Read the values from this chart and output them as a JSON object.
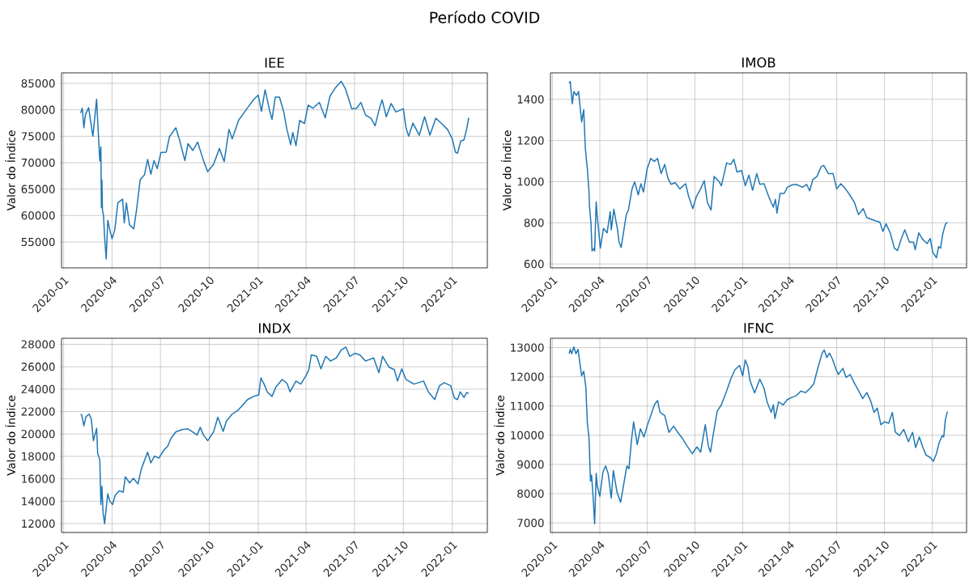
{
  "chart_data": [
    {
      "type": "other",
      "title": "Período COVID"
    },
    {
      "type": "line",
      "title": "IEE",
      "ylabel": "Valor do Índice",
      "grid": true,
      "xlim": [
        "2019-12-28",
        "2022-03-08"
      ],
      "xticks": [
        "2020-01",
        "2020-04",
        "2020-07",
        "2020-10",
        "2021-01",
        "2021-04",
        "2021-07",
        "2021-10",
        "2022-01"
      ],
      "ylim": [
        50100,
        87000
      ],
      "yticks": [
        55000,
        60000,
        65000,
        70000,
        75000,
        80000,
        85000
      ],
      "x": [
        "2020-02-02",
        "2020-02-05",
        "2020-02-08",
        "2020-02-11",
        "2020-02-17",
        "2020-02-25",
        "2020-03-03",
        "2020-03-05",
        "2020-03-09",
        "2020-03-11",
        "2020-03-12",
        "2020-03-13",
        "2020-03-14",
        "2020-03-16",
        "2020-03-18",
        "2020-03-21",
        "2020-03-24",
        "2020-03-28",
        "2020-04-01",
        "2020-04-06",
        "2020-04-12",
        "2020-04-21",
        "2020-04-24",
        "2020-04-28",
        "2020-05-04",
        "2020-05-12",
        "2020-05-17",
        "2020-05-24",
        "2020-06-01",
        "2020-06-07",
        "2020-06-13",
        "2020-06-19",
        "2020-06-25",
        "2020-07-02",
        "2020-07-12",
        "2020-07-18",
        "2020-07-30",
        "2020-08-06",
        "2020-08-16",
        "2020-08-22",
        "2020-08-31",
        "2020-09-09",
        "2020-09-21",
        "2020-09-28",
        "2020-10-09",
        "2020-10-20",
        "2020-10-29",
        "2020-11-07",
        "2020-11-13",
        "2020-11-25",
        "2020-12-12",
        "2020-12-23",
        "2021-01-01",
        "2021-01-07",
        "2021-01-14",
        "2021-01-23",
        "2021-01-27",
        "2021-02-02",
        "2021-02-10",
        "2021-02-18",
        "2021-02-24",
        "2021-03-03",
        "2021-03-07",
        "2021-03-13",
        "2021-03-20",
        "2021-03-29",
        "2021-04-05",
        "2021-04-14",
        "2021-04-26",
        "2021-05-07",
        "2021-05-16",
        "2021-05-25",
        "2021-06-06",
        "2021-06-14",
        "2021-06-26",
        "2021-07-05",
        "2021-07-13",
        "2021-07-22",
        "2021-08-01",
        "2021-08-09",
        "2021-08-16",
        "2021-08-22",
        "2021-08-30",
        "2021-09-08",
        "2021-09-17",
        "2021-10-01",
        "2021-10-06",
        "2021-10-11",
        "2021-10-19",
        "2021-10-31",
        "2021-11-10",
        "2021-11-20",
        "2021-12-01",
        "2021-12-11",
        "2021-12-23",
        "2022-01-01",
        "2022-01-07",
        "2022-01-11",
        "2022-01-17",
        "2022-01-23",
        "2022-01-28",
        "2022-02-01"
      ],
      "series": [
        {
          "color": "#1f77b4",
          "values": [
            79400,
            80300,
            76600,
            79100,
            80400,
            75000,
            82000,
            77900,
            70300,
            73000,
            61500,
            66700,
            61000,
            60000,
            56000,
            51800,
            59100,
            57200,
            55600,
            57200,
            62400,
            63100,
            58600,
            62400,
            58200,
            57500,
            61000,
            66800,
            67700,
            70600,
            67800,
            70400,
            68900,
            71900,
            72000,
            74900,
            76600,
            74300,
            70400,
            73600,
            72300,
            73900,
            70100,
            68300,
            69700,
            72700,
            70200,
            76300,
            74500,
            78000,
            80400,
            81900,
            82800,
            79700,
            83800,
            79600,
            78200,
            82400,
            82400,
            79600,
            76300,
            73400,
            75700,
            73200,
            78000,
            77400,
            80900,
            80300,
            81400,
            78500,
            82600,
            84000,
            85400,
            84000,
            80200,
            80300,
            81400,
            79000,
            78400,
            77000,
            79900,
            81900,
            78700,
            81200,
            79600,
            80200,
            76600,
            75000,
            77500,
            75200,
            78700,
            75200,
            78400,
            77500,
            76300,
            74500,
            72000,
            71800,
            74100,
            74300,
            76300,
            78500
          ]
        }
      ]
    },
    {
      "type": "line",
      "title": "IMOB",
      "ylabel": "Valor do Índice",
      "grid": true,
      "xlim": [
        "2019-12-28",
        "2022-03-08"
      ],
      "xticks": [
        "2020-01",
        "2020-04",
        "2020-07",
        "2020-10",
        "2021-01",
        "2021-04",
        "2021-07",
        "2021-10",
        "2022-01"
      ],
      "ylim": [
        581,
        1529
      ],
      "yticks": [
        600,
        800,
        1000,
        1200,
        1400
      ],
      "x": [
        "2020-02-02",
        "2020-02-04",
        "2020-02-08",
        "2020-02-11",
        "2020-02-16",
        "2020-02-20",
        "2020-02-26",
        "2020-03-01",
        "2020-03-04",
        "2020-03-08",
        "2020-03-11",
        "2020-03-12",
        "2020-03-15",
        "2020-03-17",
        "2020-03-21",
        "2020-03-22",
        "2020-03-25",
        "2020-03-27",
        "2020-04-02",
        "2020-04-08",
        "2020-04-15",
        "2020-04-21",
        "2020-04-23",
        "2020-04-28",
        "2020-05-05",
        "2020-05-08",
        "2020-05-12",
        "2020-05-16",
        "2020-05-22",
        "2020-05-26",
        "2020-06-02",
        "2020-06-07",
        "2020-06-14",
        "2020-06-19",
        "2020-06-24",
        "2020-07-01",
        "2020-07-08",
        "2020-07-15",
        "2020-07-21",
        "2020-07-28",
        "2020-08-04",
        "2020-08-10",
        "2020-08-16",
        "2020-08-24",
        "2020-09-02",
        "2020-09-13",
        "2020-09-19",
        "2020-09-27",
        "2020-10-04",
        "2020-10-12",
        "2020-10-19",
        "2020-10-25",
        "2020-11-01",
        "2020-11-07",
        "2020-11-16",
        "2020-11-21",
        "2020-12-01",
        "2020-12-09",
        "2020-12-15",
        "2020-12-21",
        "2020-12-30",
        "2021-01-06",
        "2021-01-13",
        "2021-01-20",
        "2021-01-28",
        "2021-02-03",
        "2021-02-11",
        "2021-02-20",
        "2021-03-01",
        "2021-03-05",
        "2021-03-08",
        "2021-03-14",
        "2021-03-22",
        "2021-03-28",
        "2021-04-06",
        "2021-04-14",
        "2021-04-26",
        "2021-05-04",
        "2021-05-10",
        "2021-05-16",
        "2021-05-24",
        "2021-06-01",
        "2021-06-06",
        "2021-06-15",
        "2021-06-24",
        "2021-07-01",
        "2021-07-09",
        "2021-07-18",
        "2021-07-26",
        "2021-08-04",
        "2021-08-12",
        "2021-08-21",
        "2021-08-28",
        "2021-09-06",
        "2021-09-13",
        "2021-09-22",
        "2021-09-28",
        "2021-10-04",
        "2021-10-12",
        "2021-10-20",
        "2021-10-26",
        "2021-11-02",
        "2021-11-09",
        "2021-11-18",
        "2021-11-26",
        "2021-11-29",
        "2021-12-06",
        "2021-12-13",
        "2021-12-22",
        "2021-12-28",
        "2022-01-02",
        "2022-01-09",
        "2022-01-13",
        "2022-01-17",
        "2022-01-21",
        "2022-01-26",
        "2022-01-30"
      ],
      "series": [
        {
          "color": "#1f77b4",
          "values": [
            1478,
            1487,
            1379,
            1438,
            1419,
            1438,
            1290,
            1350,
            1165,
            1061,
            958,
            884,
            795,
            663,
            677,
            663,
            902,
            832,
            677,
            773,
            751,
            854,
            766,
            866,
            768,
            706,
            680,
            744,
            840,
            862,
            965,
            999,
            936,
            990,
            950,
            1061,
            1113,
            1098,
            1113,
            1039,
            1084,
            1017,
            987,
            995,
            965,
            990,
            928,
            869,
            928,
            965,
            1005,
            899,
            862,
            1025,
            1002,
            980,
            1091,
            1084,
            1109,
            1047,
            1054,
            980,
            1032,
            958,
            1039,
            987,
            990,
            928,
            876,
            914,
            847,
            943,
            943,
            973,
            984,
            987,
            973,
            987,
            955,
            1010,
            1025,
            1073,
            1079,
            1039,
            1039,
            965,
            990,
            965,
            936,
            899,
            840,
            869,
            825,
            817,
            810,
            803,
            758,
            795,
            751,
            677,
            665,
            721,
            766,
            706,
            706,
            669,
            751,
            721,
            699,
            724,
            655,
            630,
            684,
            677,
            744,
            792,
            803
          ]
        }
      ]
    },
    {
      "type": "line",
      "title": "INDX",
      "ylabel": "Valor do Índice",
      "grid": true,
      "xlim": [
        "2019-12-28",
        "2022-03-08"
      ],
      "xticks": [
        "2020-01",
        "2020-04",
        "2020-07",
        "2020-10",
        "2021-01",
        "2021-04",
        "2021-07",
        "2021-10",
        "2022-01"
      ],
      "ylim": [
        11210,
        28540
      ],
      "yticks": [
        12000,
        14000,
        16000,
        18000,
        20000,
        22000,
        24000,
        26000,
        28000
      ],
      "x": [
        "2020-02-02",
        "2020-02-04",
        "2020-02-08",
        "2020-02-12",
        "2020-02-18",
        "2020-02-22",
        "2020-02-26",
        "2020-03-03",
        "2020-03-05",
        "2020-03-09",
        "2020-03-11",
        "2020-03-13",
        "2020-03-15",
        "2020-03-18",
        "2020-03-20",
        "2020-03-24",
        "2020-03-28",
        "2020-04-02",
        "2020-04-07",
        "2020-04-15",
        "2020-04-22",
        "2020-04-26",
        "2020-05-04",
        "2020-05-11",
        "2020-05-20",
        "2020-05-26",
        "2020-06-07",
        "2020-06-13",
        "2020-06-20",
        "2020-06-28",
        "2020-07-07",
        "2020-07-15",
        "2020-07-21",
        "2020-07-30",
        "2020-08-11",
        "2020-08-22",
        "2020-08-31",
        "2020-09-08",
        "2020-09-14",
        "2020-09-20",
        "2020-09-28",
        "2020-10-09",
        "2020-10-17",
        "2020-10-27",
        "2020-11-02",
        "2020-11-13",
        "2020-11-25",
        "2020-12-12",
        "2020-12-23",
        "2021-01-02",
        "2021-01-06",
        "2021-01-12",
        "2021-01-18",
        "2021-01-27",
        "2021-02-03",
        "2021-02-15",
        "2021-02-24",
        "2021-03-02",
        "2021-03-13",
        "2021-03-22",
        "2021-03-31",
        "2021-04-06",
        "2021-04-11",
        "2021-04-21",
        "2021-04-29",
        "2021-05-08",
        "2021-05-17",
        "2021-05-28",
        "2021-06-06",
        "2021-06-15",
        "2021-06-22",
        "2021-07-02",
        "2021-07-11",
        "2021-07-22",
        "2021-08-06",
        "2021-08-16",
        "2021-08-23",
        "2021-09-04",
        "2021-09-14",
        "2021-09-20",
        "2021-09-28",
        "2021-10-06",
        "2021-10-21",
        "2021-11-08",
        "2021-11-17",
        "2021-11-29",
        "2021-12-08",
        "2021-12-17",
        "2021-12-29",
        "2022-01-05",
        "2022-01-11",
        "2022-01-16",
        "2022-01-23",
        "2022-01-28",
        "2022-02-01"
      ],
      "series": [
        {
          "color": "#1f77b4",
          "values": [
            21770,
            21690,
            20730,
            21550,
            21770,
            21330,
            19400,
            20500,
            18250,
            17700,
            13700,
            15350,
            13070,
            12000,
            12880,
            14670,
            13980,
            13700,
            14530,
            14940,
            14800,
            16180,
            15630,
            16040,
            15550,
            16870,
            18380,
            17420,
            18030,
            17840,
            18520,
            18930,
            19620,
            20180,
            20400,
            20450,
            20180,
            19900,
            20590,
            19900,
            19400,
            20180,
            21500,
            20230,
            21140,
            21770,
            22160,
            23070,
            23350,
            23480,
            25000,
            24450,
            23760,
            23350,
            24170,
            24860,
            24530,
            23760,
            24720,
            24450,
            25140,
            25690,
            27060,
            26930,
            25820,
            26930,
            26510,
            26790,
            27480,
            27750,
            26930,
            27200,
            27060,
            26510,
            26790,
            25470,
            26930,
            25960,
            25740,
            24720,
            25820,
            24860,
            24450,
            24720,
            23760,
            23070,
            24310,
            24580,
            24310,
            23210,
            23070,
            23760,
            23260,
            23700,
            23620
          ]
        }
      ]
    },
    {
      "type": "line",
      "title": "IFNC",
      "ylabel": "Valor do Índice",
      "grid": true,
      "xlim": [
        "2019-12-28",
        "2022-03-08"
      ],
      "xticks": [
        "2020-01",
        "2020-04",
        "2020-07",
        "2020-10",
        "2021-01",
        "2021-04",
        "2021-07",
        "2021-10",
        "2022-01"
      ],
      "ylim": [
        6670,
        13320
      ],
      "yticks": [
        7000,
        8000,
        9000,
        10000,
        11000,
        12000,
        13000
      ],
      "x": [
        "2020-02-02",
        "2020-02-04",
        "2020-02-07",
        "2020-02-11",
        "2020-02-15",
        "2020-02-19",
        "2020-02-26",
        "2020-03-01",
        "2020-03-05",
        "2020-03-08",
        "2020-03-11",
        "2020-03-12",
        "2020-03-14",
        "2020-03-16",
        "2020-03-19",
        "2020-03-22",
        "2020-03-25",
        "2020-03-27",
        "2020-04-01",
        "2020-04-07",
        "2020-04-12",
        "2020-04-17",
        "2020-04-23",
        "2020-04-27",
        "2020-05-04",
        "2020-05-11",
        "2020-05-16",
        "2020-05-23",
        "2020-05-27",
        "2020-06-01",
        "2020-06-05",
        "2020-06-12",
        "2020-06-18",
        "2020-06-25",
        "2020-07-01",
        "2020-07-07",
        "2020-07-15",
        "2020-07-21",
        "2020-07-26",
        "2020-08-04",
        "2020-08-12",
        "2020-08-21",
        "2020-08-29",
        "2020-09-07",
        "2020-09-16",
        "2020-09-26",
        "2020-10-05",
        "2020-10-12",
        "2020-10-21",
        "2020-10-27",
        "2020-10-31",
        "2020-11-06",
        "2020-11-13",
        "2020-11-21",
        "2020-12-01",
        "2020-12-09",
        "2020-12-17",
        "2020-12-26",
        "2021-01-01",
        "2021-01-06",
        "2021-01-11",
        "2021-01-15",
        "2021-01-24",
        "2021-02-03",
        "2021-02-11",
        "2021-02-17",
        "2021-02-25",
        "2021-03-01",
        "2021-03-04",
        "2021-03-11",
        "2021-03-20",
        "2021-03-28",
        "2021-04-06",
        "2021-04-14",
        "2021-04-23",
        "2021-05-02",
        "2021-05-11",
        "2021-05-18",
        "2021-05-24",
        "2021-06-03",
        "2021-06-07",
        "2021-06-12",
        "2021-06-17",
        "2021-06-23",
        "2021-06-29",
        "2021-07-04",
        "2021-07-13",
        "2021-07-19",
        "2021-07-27",
        "2021-08-03",
        "2021-08-11",
        "2021-08-20",
        "2021-08-28",
        "2021-09-05",
        "2021-09-11",
        "2021-09-17",
        "2021-09-24",
        "2021-10-01",
        "2021-10-09",
        "2021-10-16",
        "2021-10-22",
        "2021-10-30",
        "2021-11-07",
        "2021-11-16",
        "2021-11-24",
        "2021-11-30",
        "2021-12-07",
        "2021-12-14",
        "2021-12-20",
        "2021-12-28",
        "2022-01-03",
        "2022-01-09",
        "2022-01-14",
        "2022-01-20",
        "2022-01-23",
        "2022-01-26",
        "2022-01-30"
      ],
      "series": [
        {
          "color": "#1f77b4",
          "values": [
            12790,
            12940,
            12790,
            13020,
            12790,
            12940,
            12030,
            12190,
            11660,
            10410,
            9940,
            9470,
            8430,
            8640,
            7910,
            6970,
            8690,
            8270,
            7910,
            8740,
            8950,
            8690,
            7850,
            8790,
            8060,
            7700,
            8220,
            8950,
            8850,
            9840,
            10460,
            9680,
            10220,
            9940,
            10310,
            10620,
            11040,
            11190,
            10780,
            10670,
            10100,
            10310,
            10100,
            9890,
            9630,
            9370,
            9600,
            9420,
            10360,
            9630,
            9420,
            10100,
            10830,
            11040,
            11510,
            11920,
            12240,
            12390,
            12030,
            12580,
            12340,
            11870,
            11450,
            11920,
            11610,
            11140,
            10780,
            11040,
            10570,
            11140,
            11040,
            11220,
            11300,
            11350,
            11510,
            11460,
            11610,
            11770,
            12190,
            12810,
            12920,
            12660,
            12810,
            12600,
            12290,
            12080,
            12290,
            11980,
            12080,
            11820,
            11560,
            11250,
            11460,
            11140,
            10780,
            10930,
            10360,
            10460,
            10410,
            10780,
            10100,
            9990,
            10200,
            9780,
            10100,
            9580,
            9940,
            9580,
            9320,
            9240,
            9110,
            9370,
            9730,
            9990,
            9940,
            10510,
            10810
          ]
        }
      ]
    }
  ]
}
